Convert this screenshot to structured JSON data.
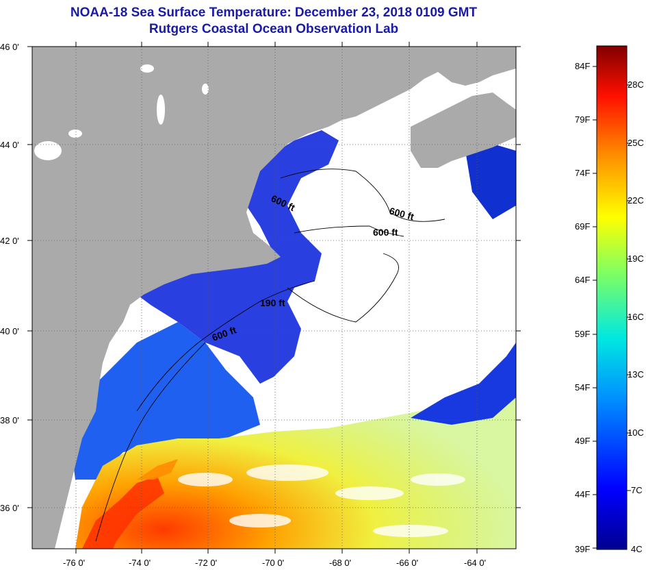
{
  "title": "NOAA-18 Sea Surface Temperature:  December 23, 2018 0109 GMT",
  "subtitle": "Rutgers Coastal Ocean Observation Lab",
  "lat_labels": [
    "46 0'",
    "44 0'",
    "42 0'",
    "40 0'",
    "38 0'",
    "36 0'"
  ],
  "lon_labels": [
    "-76 0'",
    "-74 0'",
    "-72 0'",
    "-70 0'",
    "-68 0'",
    "-66 0'",
    "-64 0'"
  ],
  "isobath_labels": [
    "600 ft",
    "600 ft",
    "600 ft",
    "190 ft",
    "600 ft"
  ],
  "colorbar": {
    "f_labels": [
      "84F",
      "79F",
      "74F",
      "69F",
      "64F",
      "59F",
      "54F",
      "49F",
      "44F",
      "39F"
    ],
    "c_labels": [
      "28C",
      "25C",
      "22C",
      "19C",
      "16C",
      "13C",
      "10C",
      "7C",
      "4C"
    ]
  },
  "colors": {
    "land": "#aaaaaa",
    "cloud": "#ffffff",
    "title": "#1a1aa8"
  }
}
